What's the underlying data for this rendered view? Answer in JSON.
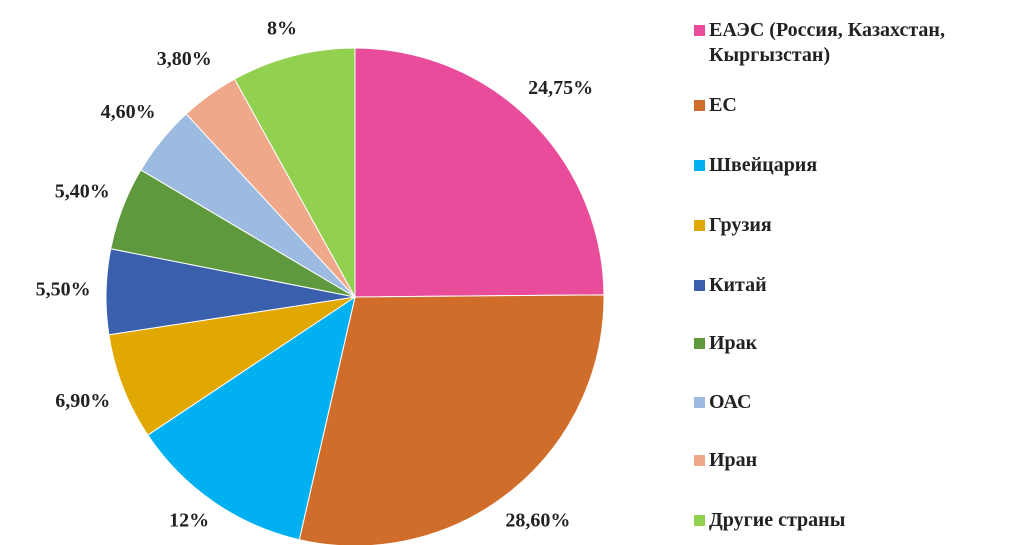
{
  "chart_data": {
    "type": "pie",
    "categories": [
      "ЕАЭС (Россия, Казахстан, Кыргызстан)",
      "ЕС",
      "Швейцария",
      "Грузия",
      "Китай",
      "Ирак",
      "ОАС",
      "Иран",
      "Другие страны"
    ],
    "values": [
      24.75,
      28.6,
      12,
      6.9,
      5.5,
      5.4,
      4.6,
      3.8,
      8
    ],
    "value_labels": [
      "24,75%",
      "28,60%",
      "12%",
      "6,90%",
      "5,50%",
      "5,40%",
      "4,60%",
      "3,80%",
      "8%"
    ],
    "colors": [
      "#e84c9a",
      "#d16d2a",
      "#00b0f0",
      "#e0a800",
      "#3a60ad",
      "#5e9a3d",
      "#9dbbe0",
      "#f0a88a",
      "#92d050"
    ],
    "legend": "right"
  }
}
